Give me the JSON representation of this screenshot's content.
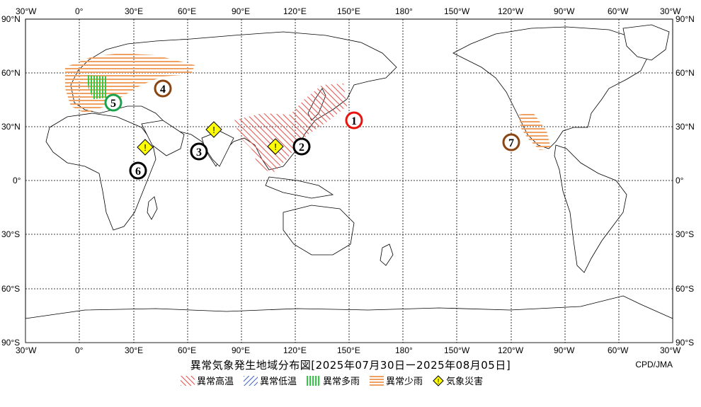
{
  "map": {
    "top_lon_labels": [
      "30°W",
      "0°",
      "30°E",
      "60°E",
      "90°E",
      "120°E",
      "150°E",
      "180°",
      "150°W",
      "120°W",
      "90°W",
      "60°W",
      "30°W"
    ],
    "bottom_lon_labels": [
      "30°W",
      "0°",
      "30°E",
      "60°E",
      "90°E",
      "120°E",
      "150°E",
      "180°",
      "150°W",
      "120°W",
      "90°W",
      "60°W",
      "30°W"
    ],
    "left_lat_labels": [
      "90°N",
      "60°N",
      "30°N",
      "0°",
      "30°S",
      "60°S",
      "90°S"
    ],
    "right_lat_labels": [
      "90°N",
      "60°N",
      "30°N",
      "0°",
      "30°S",
      "60°S",
      "90°S"
    ],
    "colors": {
      "abnormal_high_temp": "#e8504a",
      "abnormal_low_temp": "#3a5fcd",
      "abnormal_heavy_rain": "#2ecc40",
      "abnormal_light_rain": "#f0a060",
      "weather_disaster": "#ffff00"
    },
    "markers": [
      {
        "id": "1",
        "type": "abnormal_high_temp",
        "border": "#e8150f"
      },
      {
        "id": "2",
        "type": "abnormal_high_temp",
        "border": "#000000"
      },
      {
        "id": "3",
        "type": "abnormal_high_temp",
        "border": "#000000"
      },
      {
        "id": "4",
        "type": "abnormal_light_rain",
        "border": "#8b4513"
      },
      {
        "id": "5",
        "type": "abnormal_heavy_rain",
        "border": "#1aa34a"
      },
      {
        "id": "6",
        "type": "abnormal_high_temp",
        "border": "#000000"
      },
      {
        "id": "7",
        "type": "abnormal_light_rain",
        "border": "#8b4513"
      }
    ],
    "disaster_symbol": "!"
  },
  "title": "異常気象発生地域分布図[2025年07月30日ー2025年08月05日]",
  "credit": "CPD/JMA",
  "legend": {
    "high_temp": "異常高温",
    "low_temp": "異常低温",
    "heavy_rain": "異常多雨",
    "light_rain": "異常少雨",
    "disaster": "気象災害"
  }
}
